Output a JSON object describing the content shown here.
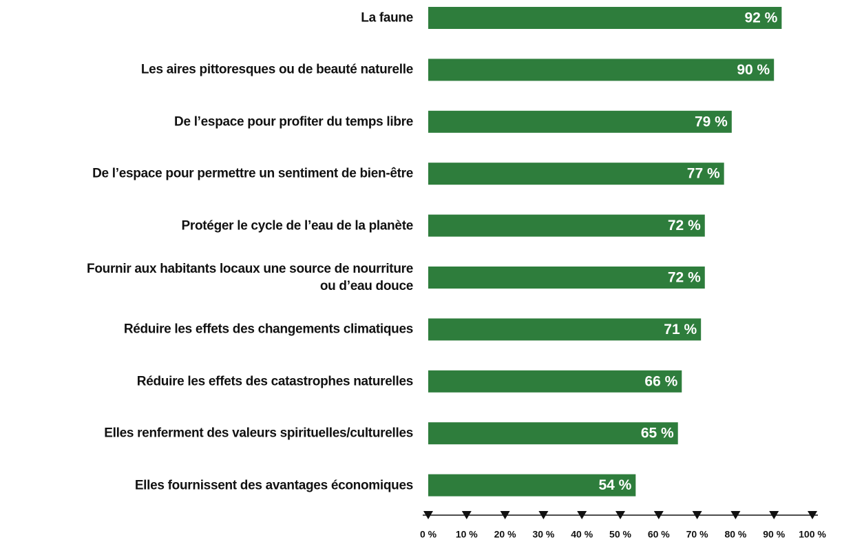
{
  "chart_data": {
    "type": "bar",
    "orientation": "horizontal",
    "color": "#2e7d3c",
    "categories": [
      "La faune",
      "Les aires pittoresques ou de beauté naturelle",
      "De l’espace pour profiter du temps libre",
      "De l’espace pour permettre un sentiment de bien-être",
      "Protéger le cycle de l’eau de la planète",
      "Fournir aux habitants locaux une source de nourriture\nou d’eau douce",
      "Réduire les effets des changements climatiques",
      "Réduire les effets des catastrophes naturelles",
      "Elles renferment des valeurs spirituelles/culturelles",
      "Elles fournissent des avantages économiques"
    ],
    "values": [
      92,
      90,
      79,
      77,
      72,
      72,
      71,
      66,
      65,
      54
    ],
    "value_labels": [
      "92 %",
      "90 %",
      "79 %",
      "77 %",
      "72 %",
      "72 %",
      "71 %",
      "66 %",
      "65 %",
      "54 %"
    ],
    "xlim": [
      0,
      100
    ],
    "xticks": [
      {
        "value": 0,
        "label": "0 %"
      },
      {
        "value": 10,
        "label": "10 %"
      },
      {
        "value": 20,
        "label": "20 %"
      },
      {
        "value": 30,
        "label": "30 %"
      },
      {
        "value": 40,
        "label": "40 %"
      },
      {
        "value": 50,
        "label": "50 %"
      },
      {
        "value": 60,
        "label": "60 %"
      },
      {
        "value": 70,
        "label": "70 %"
      },
      {
        "value": 80,
        "label": "80 %"
      },
      {
        "value": 90,
        "label": "90 %"
      },
      {
        "value": 100,
        "label": "100 %"
      }
    ]
  }
}
